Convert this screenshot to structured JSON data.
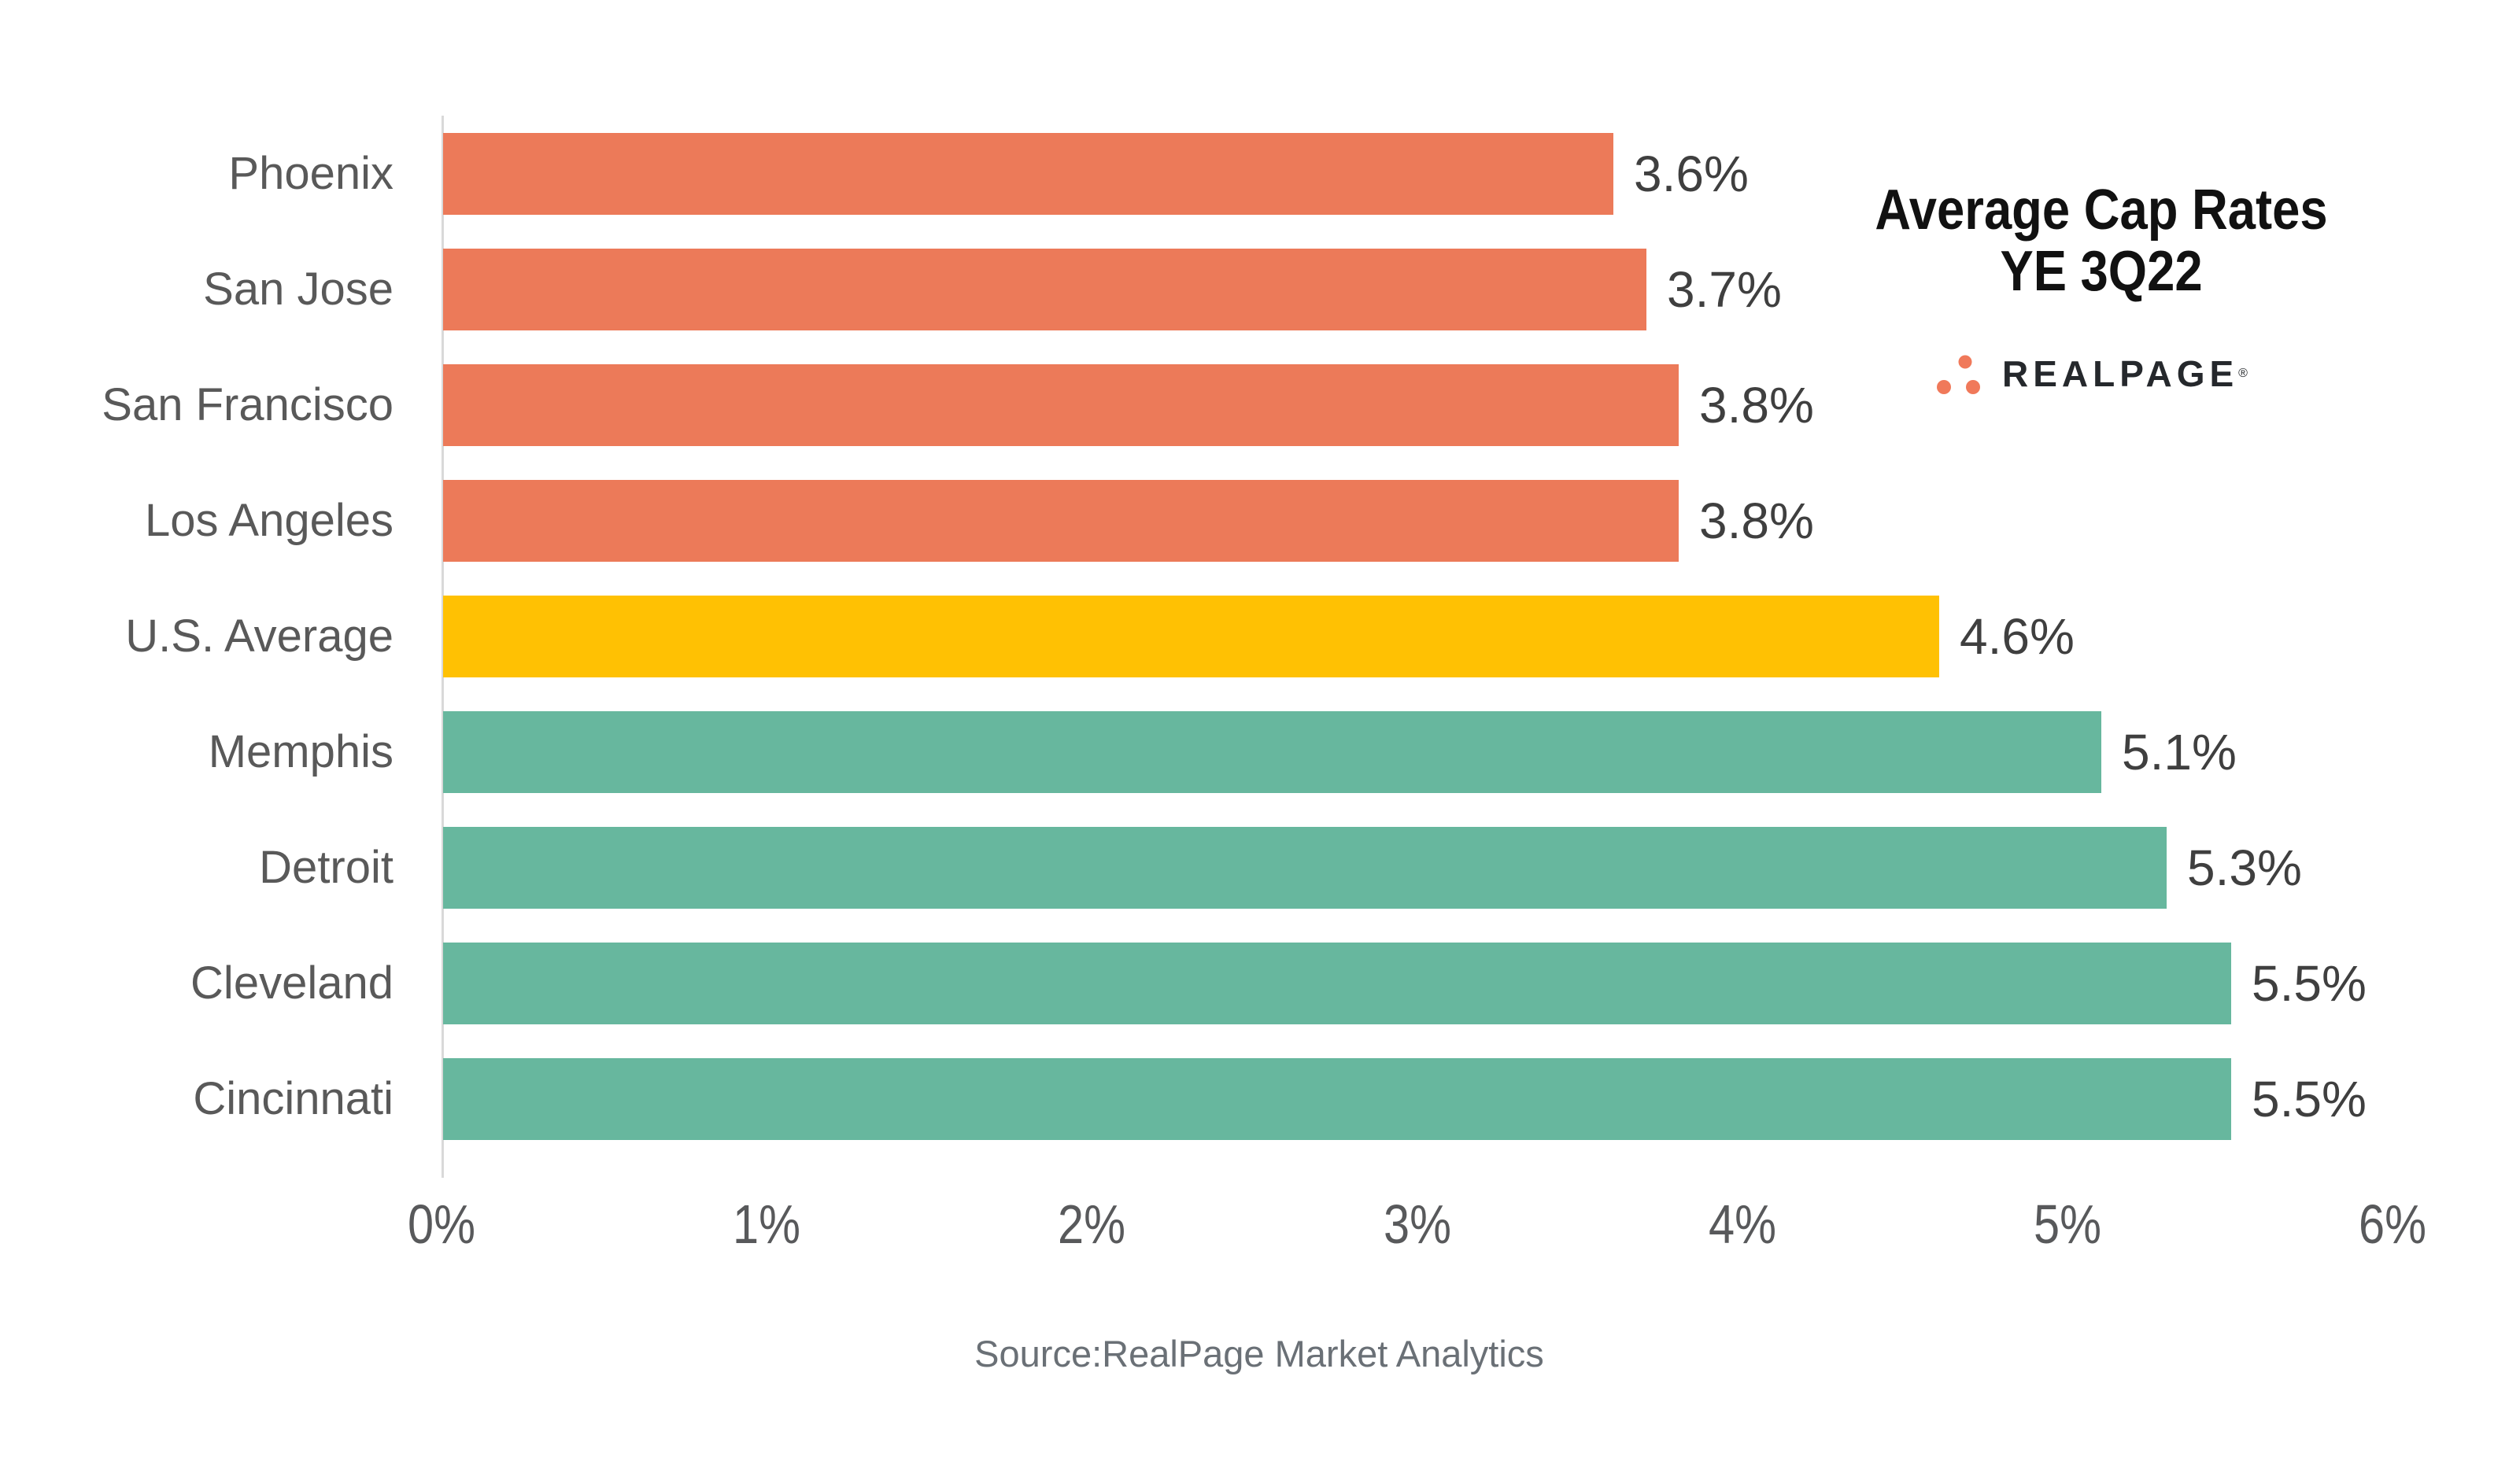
{
  "chart_data": {
    "type": "bar",
    "orientation": "horizontal",
    "title": "Average Cap Rates YE 3Q22",
    "title_lines": [
      "Average Cap Rates",
      "YE 3Q22"
    ],
    "categories": [
      "Phoenix",
      "San Jose",
      "San Francisco",
      "Los Angeles",
      "U.S. Average",
      "Memphis",
      "Detroit",
      "Cleveland",
      "Cincinnati"
    ],
    "values": [
      3.6,
      3.7,
      3.8,
      3.8,
      4.6,
      5.1,
      5.3,
      5.5,
      5.5
    ],
    "value_labels": [
      "3.6%",
      "3.7%",
      "3.8%",
      "3.8%",
      "4.6%",
      "5.1%",
      "5.3%",
      "5.5%",
      "5.5%"
    ],
    "bar_colors": [
      "#ec7a59",
      "#ec7a59",
      "#ec7a59",
      "#ec7a59",
      "#ffc103",
      "#67b79e",
      "#67b79e",
      "#67b79e",
      "#67b79e"
    ],
    "x_ticks": [
      "0%",
      "1%",
      "2%",
      "3%",
      "4%",
      "5%",
      "6%"
    ],
    "x_tick_values": [
      0,
      1,
      2,
      3,
      4,
      5,
      6
    ],
    "xlim": [
      0,
      6
    ],
    "grid": false,
    "legend": "none",
    "source": "Source:RealPage Market Analytics"
  },
  "branding": {
    "logo_text": "REALPAGE",
    "registered_mark": "®",
    "logo_dot_color": "#f0795a",
    "logo_text_color": "#25282c"
  },
  "colors": {
    "orange_bar": "#ec7a59",
    "gold_bar": "#ffc103",
    "teal_bar": "#67b79e",
    "axis_line": "#d9d9d9",
    "category_label": "#595959",
    "value_label": "#3f3f3f",
    "tick_label": "#58595b",
    "title": "#111111",
    "source_text": "#6a7076"
  }
}
